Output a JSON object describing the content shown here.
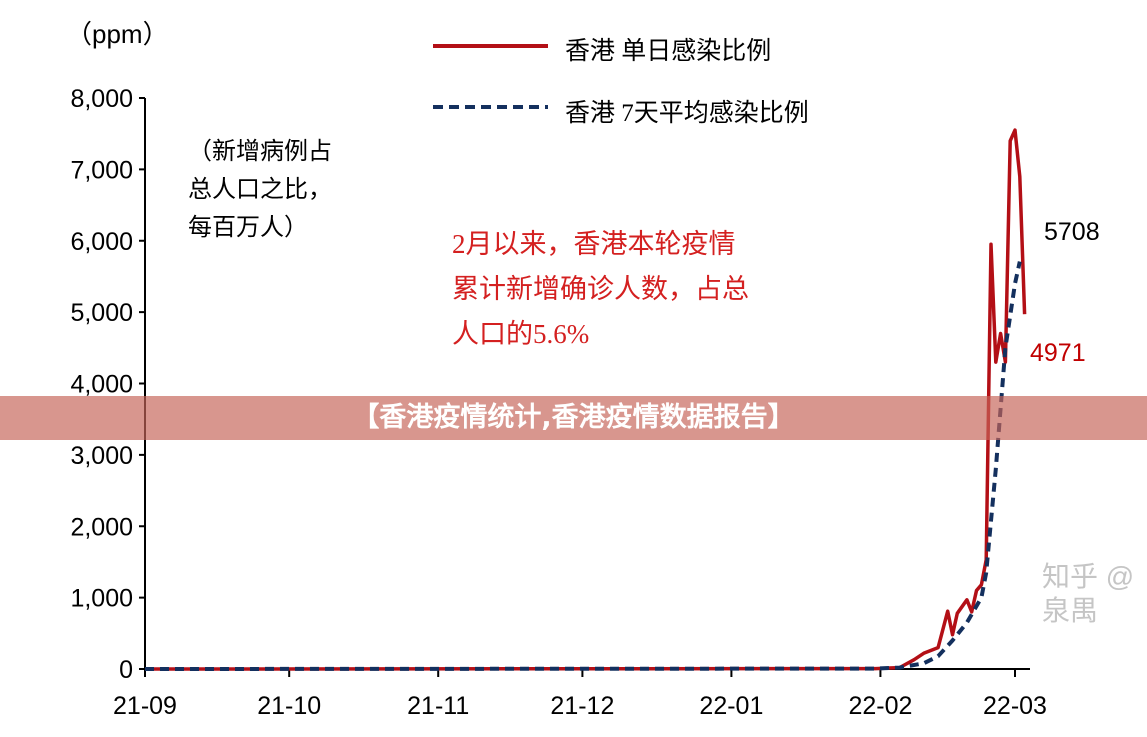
{
  "banner": "【香港疫情统计,香港疫情数据报告】",
  "watermark": "知乎 @泉禺",
  "chart_data": {
    "type": "line",
    "unit_label": "（ppm）",
    "annotation_note": "（新增病例占\n总人口之比，\n每百万人）",
    "annotation_callout": "2月以来，香港本轮疫情\n累计新增确诊人数，占总\n人口的5.6%",
    "ylim": [
      0,
      8000
    ],
    "yticks": [
      "0",
      "1,000",
      "2,000",
      "3,000",
      "4,000",
      "5,000",
      "6,000",
      "7,000",
      "8,000"
    ],
    "ytick_values": [
      0,
      1000,
      2000,
      3000,
      4000,
      5000,
      6000,
      7000,
      8000
    ],
    "xlim": [
      "2021-09-01",
      "2022-03-01"
    ],
    "xticks": [
      "21-09",
      "21-10",
      "21-11",
      "21-12",
      "22-01",
      "22-02",
      "22-03"
    ],
    "xtick_dates": [
      "2021-09-01",
      "2021-10-01",
      "2021-11-01",
      "2021-12-01",
      "2022-01-01",
      "2022-02-01",
      "2022-03-01"
    ],
    "grid": false,
    "legend_position": "top",
    "series": [
      {
        "name": "香港 单日感染比例",
        "color": "#b30f16",
        "style": "solid",
        "points": [
          [
            "2021-09-01",
            0
          ],
          [
            "2022-01-31",
            5
          ],
          [
            "2022-02-05",
            20
          ],
          [
            "2022-02-08",
            130
          ],
          [
            "2022-02-10",
            220
          ],
          [
            "2022-02-13",
            300
          ],
          [
            "2022-02-15",
            810
          ],
          [
            "2022-02-16",
            480
          ],
          [
            "2022-02-17",
            780
          ],
          [
            "2022-02-19",
            970
          ],
          [
            "2022-02-20",
            800
          ],
          [
            "2022-02-21",
            1100
          ],
          [
            "2022-02-22",
            1180
          ],
          [
            "2022-02-23",
            1530
          ],
          [
            "2022-02-24",
            5950
          ],
          [
            "2022-02-25",
            4300
          ],
          [
            "2022-02-26",
            4700
          ],
          [
            "2022-02-27",
            4300
          ],
          [
            "2022-02-28",
            7400
          ],
          [
            "2022-03-01",
            7550
          ],
          [
            "2022-03-02",
            6900
          ],
          [
            "2022-03-03",
            4971
          ]
        ],
        "end_label": "4971"
      },
      {
        "name": "香港 7天平均感染比例",
        "color": "#14305e",
        "style": "dashed",
        "points": [
          [
            "2021-09-01",
            0
          ],
          [
            "2022-01-31",
            5
          ],
          [
            "2022-02-05",
            20
          ],
          [
            "2022-02-10",
            80
          ],
          [
            "2022-02-13",
            180
          ],
          [
            "2022-02-16",
            400
          ],
          [
            "2022-02-19",
            650
          ],
          [
            "2022-02-22",
            1000
          ],
          [
            "2022-02-23",
            1350
          ],
          [
            "2022-02-25",
            2800
          ],
          [
            "2022-02-27",
            4500
          ],
          [
            "2022-03-01",
            5400
          ],
          [
            "2022-03-02",
            5708
          ]
        ],
        "end_label": "5708"
      }
    ]
  }
}
